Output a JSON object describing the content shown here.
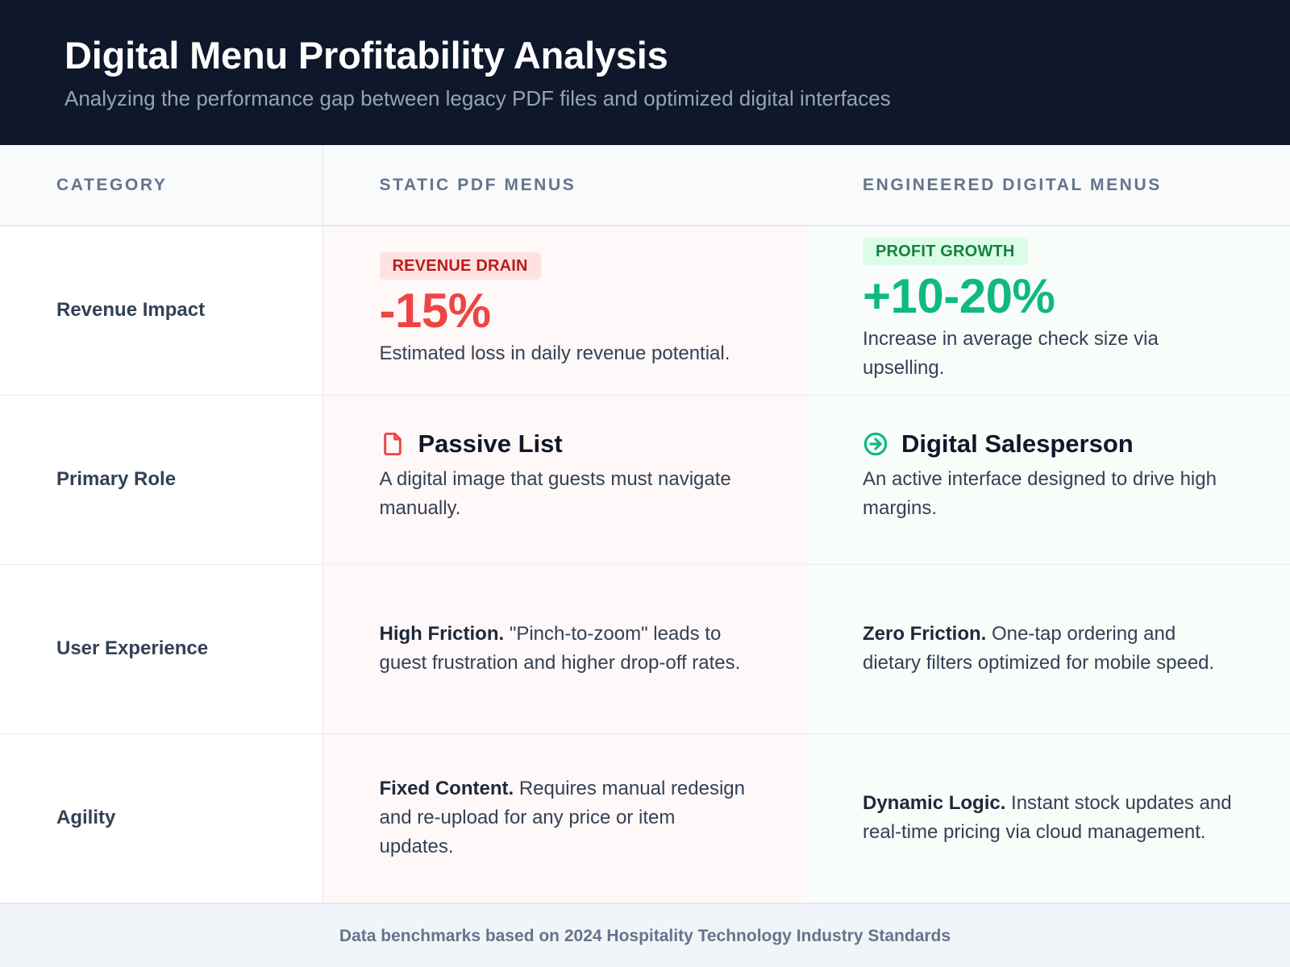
{
  "header": {
    "title": "Digital Menu Profitability Analysis",
    "subtitle": "Analyzing the performance gap between legacy PDF files and optimized digital interfaces"
  },
  "columns": {
    "category": "CATEGORY",
    "pdf": "STATIC PDF MENUS",
    "digital": "ENGINEERED DIGITAL MENUS"
  },
  "rows": {
    "revenue": {
      "category": "Revenue Impact",
      "pdf": {
        "badge": "REVENUE DRAIN",
        "value": "-15%",
        "description": "Estimated loss in daily revenue potential."
      },
      "digital": {
        "badge": "PROFIT GROWTH",
        "value": "+10-20%",
        "description": "Increase in average check size via upselling."
      }
    },
    "role": {
      "category": "Primary Role",
      "pdf": {
        "icon": "document-icon",
        "title": "Passive List",
        "description": "A digital image that guests must navigate manually."
      },
      "digital": {
        "icon": "arrow-circle-icon",
        "title": "Digital Salesperson",
        "description": "An active interface designed to drive high margins."
      }
    },
    "experience": {
      "category": "User Experience",
      "pdf": {
        "lead": "High Friction.",
        "text": " \"Pinch-to-zoom\" leads to guest frustration and higher drop-off rates."
      },
      "digital": {
        "lead": "Zero Friction.",
        "text": " One-tap ordering and dietary filters optimized for mobile speed."
      }
    },
    "agility": {
      "category": "Agility",
      "pdf": {
        "lead": "Fixed Content.",
        "text": " Requires manual redesign and re-upload for any price or item updates."
      },
      "digital": {
        "lead": "Dynamic Logic.",
        "text": " Instant stock updates and real-time pricing via cloud management."
      }
    }
  },
  "footer": {
    "note": "Data benchmarks based on 2024 Hospitality Technology Industry Standards"
  },
  "colors": {
    "header_bg": "#0f172a",
    "negative": "#ef4444",
    "positive": "#10b981"
  }
}
